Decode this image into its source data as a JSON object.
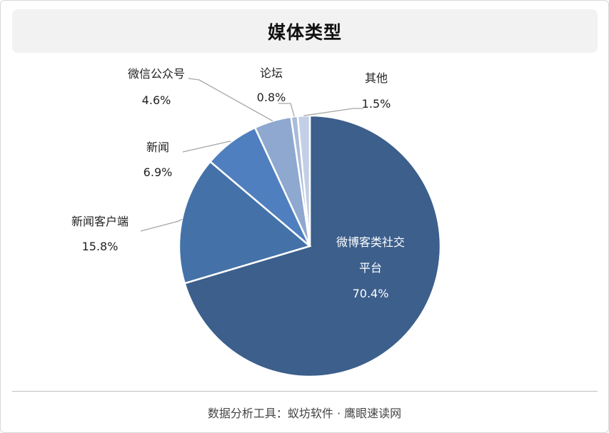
{
  "header": {
    "title": "媒体类型"
  },
  "footer": {
    "source": "数据分析工具：蚁坊软件 · 鹰眼速读网"
  },
  "chart_data": {
    "type": "pie",
    "title": "媒体类型",
    "legend": "none",
    "start_angle_deg": 0,
    "direction": "clockwise",
    "slices": [
      {
        "label": "微博客类社交平台",
        "label_lines": [
          "微博客类社交",
          "平台"
        ],
        "value": 70.4,
        "display": "70.4%",
        "color": "#3c5f8c",
        "label_inside": true
      },
      {
        "label": "新闻客户端",
        "label_lines": [
          "新闻客户端"
        ],
        "value": 15.8,
        "display": "15.8%",
        "color": "#4472a8",
        "label_inside": false
      },
      {
        "label": "新闻",
        "label_lines": [
          "新闻"
        ],
        "value": 6.9,
        "display": "6.9%",
        "color": "#4f7fbe",
        "label_inside": false
      },
      {
        "label": "微信公众号",
        "label_lines": [
          "微信公众号"
        ],
        "value": 4.6,
        "display": "4.6%",
        "color": "#8ea8cf",
        "label_inside": false
      },
      {
        "label": "论坛",
        "label_lines": [
          "论坛"
        ],
        "value": 0.8,
        "display": "0.8%",
        "color": "#aabbd9",
        "label_inside": false
      },
      {
        "label": "其他",
        "label_lines": [
          "其他"
        ],
        "value": 1.5,
        "display": "1.5%",
        "color": "#c3cfe5",
        "label_inside": false
      }
    ]
  }
}
